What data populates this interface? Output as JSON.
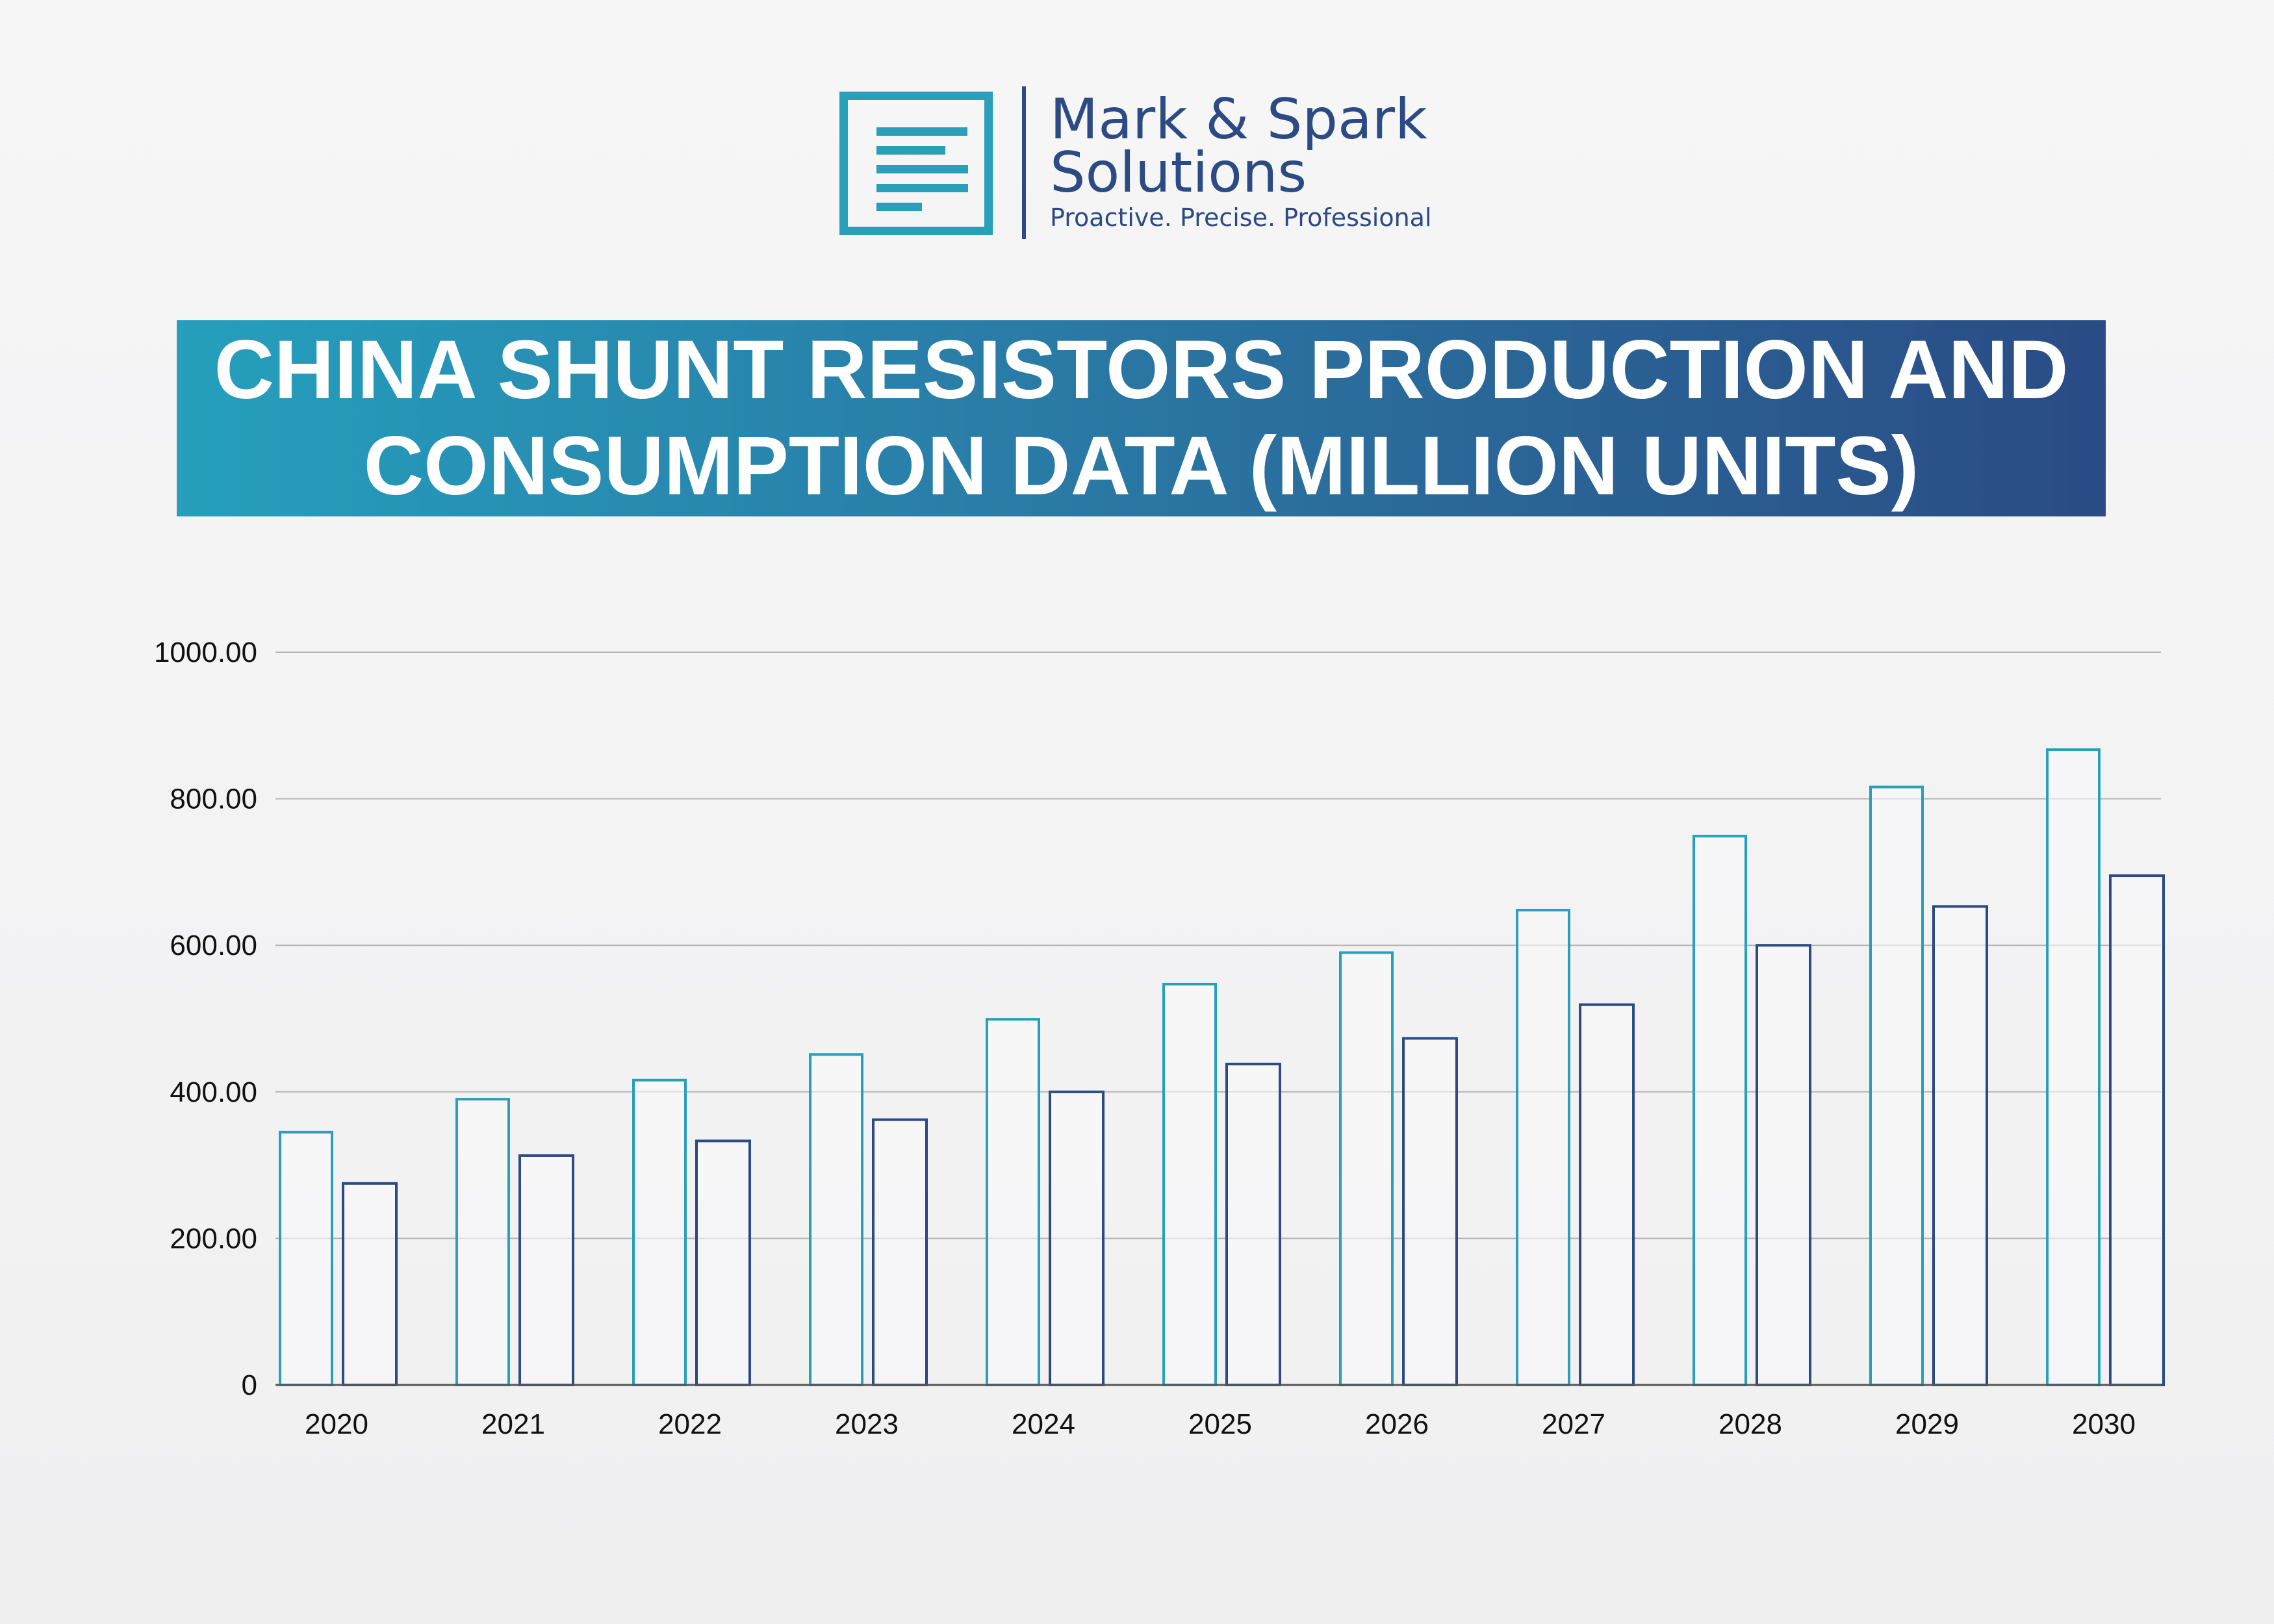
{
  "brand": {
    "line1": "Mark & Spark",
    "line2": "Solutions",
    "tagline": "Proactive. Precise. Professional",
    "icon": "document-lines-icon"
  },
  "colors": {
    "production": "#2a9fba",
    "consumption": "#2c4a83",
    "banner_start": "#259fbd",
    "banner_end": "#2a4b85"
  },
  "chart_data": {
    "type": "bar",
    "title": "CHINA SHUNT RESISTORS PRODUCTION AND CONSUMPTION DATA (MILLION UNITS)",
    "categories": [
      "2020",
      "2021",
      "2022",
      "2023",
      "2024",
      "2025",
      "2026",
      "2027",
      "2028",
      "2029",
      "2030"
    ],
    "series": [
      {
        "values": [
          345,
          390,
          416,
          451,
          499,
          547,
          590,
          648,
          749,
          816,
          867
        ],
        "color": "#2a9fba"
      },
      {
        "values": [
          275,
          313,
          333,
          362,
          400,
          438,
          473,
          519,
          600,
          653,
          695
        ],
        "color": "#2c4a83"
      }
    ],
    "yticks": [
      "0",
      "200.00",
      "400.00",
      "600.00",
      "800.00",
      "1000.00"
    ],
    "ylim": [
      0,
      1000
    ],
    "grid": true,
    "bar_style": "outline"
  }
}
